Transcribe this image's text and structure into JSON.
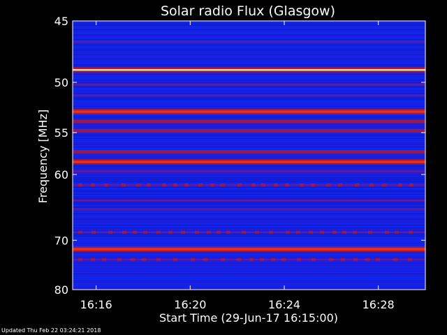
{
  "chart_data": {
    "type": "heatmap",
    "title": "Solar radio Flux (Glasgow)",
    "xlabel": "Start Time (29-Jun-17 16:15:00)",
    "ylabel": "Frequency [MHz]",
    "x_ticks": [
      "16:16",
      "16:20",
      "16:24",
      "16:28"
    ],
    "x_tick_minutes": [
      16.0,
      20.0,
      24.0,
      28.0
    ],
    "xlim_minutes": [
      15.0,
      30.0
    ],
    "y_ticks": [
      45,
      50,
      55,
      60,
      70,
      80
    ],
    "ylim": [
      45,
      80
    ],
    "y_scale": "reciprocal",
    "grid": false,
    "bands": [
      {
        "freq": 46.6,
        "level": "faint"
      },
      {
        "freq": 48.9,
        "level": "strong"
      },
      {
        "freq": 50.2,
        "level": "faint"
      },
      {
        "freq": 51.2,
        "level": "faint"
      },
      {
        "freq": 52.8,
        "level": "strong"
      },
      {
        "freq": 53.8,
        "level": "medium"
      },
      {
        "freq": 54.8,
        "level": "medium"
      },
      {
        "freq": 57.2,
        "level": "medium"
      },
      {
        "freq": 58.4,
        "level": "strong"
      },
      {
        "freq": 59.6,
        "level": "faint"
      },
      {
        "freq": 61.4,
        "level": "faint"
      },
      {
        "freq": 63.6,
        "level": "faint"
      },
      {
        "freq": 64.9,
        "level": "faint"
      },
      {
        "freq": 68.6,
        "level": "faint"
      },
      {
        "freq": 71.6,
        "level": "strong"
      },
      {
        "freq": 73.6,
        "level": "faint"
      }
    ],
    "colors": {
      "background": "#1020e8",
      "faint": "#701890",
      "medium": "#a81838",
      "strong": "#e83018",
      "peak": "#fff6c0"
    }
  },
  "footer": "Updated Thu Feb 22 03:24:21 2018"
}
